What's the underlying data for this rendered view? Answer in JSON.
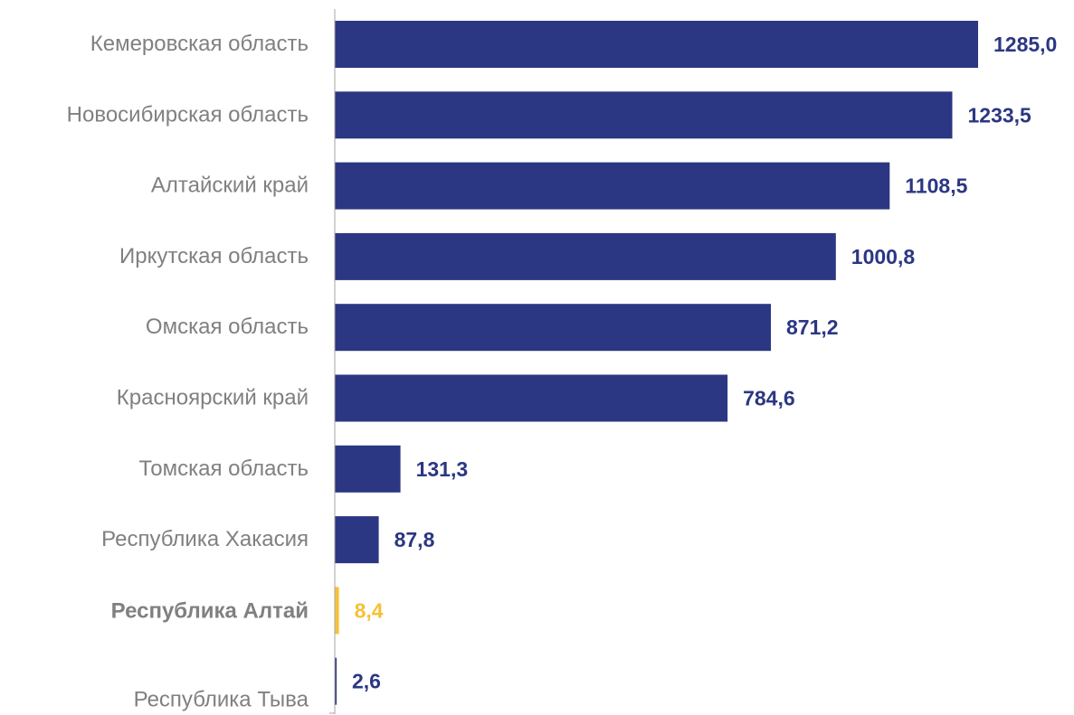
{
  "chart_data": {
    "type": "bar",
    "orientation": "horizontal",
    "title": "",
    "xlabel": "",
    "ylabel": "",
    "grid": false,
    "legend": "none",
    "xlim": [
      0,
      1285.0
    ],
    "categories": [
      "Кемеровская область",
      "Новосибирская область",
      "Алтайский край",
      "Иркутская область",
      "Омская область",
      "Красноярский край",
      "Томская область",
      "Республика Хакасия",
      "Республика Алтай",
      "Республика Тыва"
    ],
    "values": [
      1285.0,
      1233.5,
      1108.5,
      1000.8,
      871.2,
      784.6,
      131.3,
      87.8,
      8.4,
      2.6
    ],
    "value_labels": [
      "1285,0",
      "1233,5",
      "1108,5",
      "1000,8",
      "871,2",
      "784,6",
      "131,3",
      "87,8",
      "8,4",
      "2,6"
    ],
    "highlight": "Республика Алтай",
    "colors": {
      "bar": "#2b3783",
      "highlight": "#f6c136",
      "category_label": "#808080",
      "axis": "#a6a6a6"
    }
  }
}
